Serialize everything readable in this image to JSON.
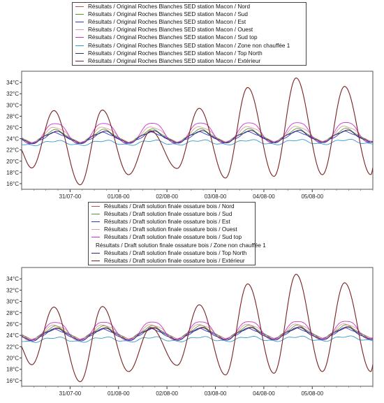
{
  "chart_data": [
    {
      "type": "line",
      "legend_position": "top",
      "grid": false,
      "ylim": [
        15,
        36
      ],
      "yticks": [
        "16°C",
        "18°C",
        "20°C",
        "22°C",
        "24°C",
        "26°C",
        "28°C",
        "30°C",
        "32°C",
        "34°C"
      ],
      "xlim": [
        "2000-07-30T00:00",
        "2000-08-06T06:00"
      ],
      "xticks": [
        "31/07-00",
        "01/08-00",
        "02/08-00",
        "03/08-00",
        "04/08-00",
        "05/08-00"
      ],
      "series": [
        {
          "name": "Résultats / Original Roches Blanches SED station Macon / Nord",
          "color": "#c0504d",
          "mean": 24.3,
          "amp": 0.9
        },
        {
          "name": "Résultats / Original Roches Blanches SED station Macon / Sud",
          "color": "#4f9a3a",
          "mean": 24.4,
          "amp": 1.1
        },
        {
          "name": "Résultats / Original Roches Blanches SED station Macon / Est",
          "color": "#3333cc",
          "mean": 24.1,
          "amp": 0.9
        },
        {
          "name": "Résultats / Original Roches Blanches SED station Macon / Ouest",
          "color": "#e39b9b",
          "mean": 24.6,
          "amp": 1.4
        },
        {
          "name": "Résultats / Original Roches Blanches SED station Macon / Sud top",
          "color": "#cc33cc",
          "mean": 24.9,
          "amp": 1.9
        },
        {
          "name": "Résultats / Original Roches Blanches SED station Macon / Zone non chauffée 1",
          "color": "#3399cc",
          "mean": 23.2,
          "amp": 0.4
        },
        {
          "name": "Résultats / Original Roches Blanches SED station Macon / Top North",
          "color": "#2a2a7a",
          "mean": 24.2,
          "amp": 1.0
        },
        {
          "name": "Résultats / Original Roches Blanches SED station Macon / Extérieur",
          "color": "#7a2020",
          "outdoor": true,
          "mins": [
            18.8,
            15.8,
            17.6,
            18.7,
            17.0,
            17.3,
            17.6,
            17.6
          ],
          "maxs": [
            29.0,
            29.1,
            25.4,
            29.4,
            33.1,
            34.8,
            33.3
          ]
        }
      ]
    },
    {
      "type": "line",
      "legend_position": "top",
      "grid": false,
      "ylim": [
        15,
        36
      ],
      "yticks": [
        "16°C",
        "18°C",
        "20°C",
        "22°C",
        "24°C",
        "26°C",
        "28°C",
        "30°C",
        "32°C",
        "34°C"
      ],
      "xlim": [
        "2000-07-30T00:00",
        "2000-08-06T06:00"
      ],
      "xticks": [
        "31/07-00",
        "01/08-00",
        "02/08-00",
        "03/08-00",
        "04/08-00",
        "05/08-00"
      ],
      "series": [
        {
          "name": "Résultats / Draft solution finale ossature bois / Nord",
          "color": "#c0504d",
          "mean": 24.3,
          "amp": 0.9
        },
        {
          "name": "Résultats / Draft solution finale ossature bois / Sud",
          "color": "#4f9a3a",
          "mean": 24.4,
          "amp": 1.1
        },
        {
          "name": "Résultats / Draft solution finale ossature bois / Est",
          "color": "#3333cc",
          "mean": 24.1,
          "amp": 0.9
        },
        {
          "name": "Résultats / Draft solution finale ossature bois / Ouest",
          "color": "#e39b9b",
          "mean": 24.5,
          "amp": 1.3
        },
        {
          "name": "Résultats / Draft solution finale ossature bois / Sud top",
          "color": "#cc33cc",
          "mean": 24.7,
          "amp": 1.7
        },
        {
          "name": "Résultats / Draft solution finale ossature bois / Zone non chauffée 1",
          "color": "#3399cc",
          "mean": 23.2,
          "amp": 0.4
        },
        {
          "name": "Résultats / Draft solution finale ossature bois / Top North",
          "color": "#2a2a7a",
          "mean": 24.1,
          "amp": 1.0
        },
        {
          "name": "Résultats / Draft solution finale ossature bois / Extérieur",
          "color": "#7a2020",
          "outdoor": true,
          "mins": [
            18.8,
            15.8,
            17.6,
            18.7,
            17.0,
            17.3,
            17.6,
            17.6
          ],
          "maxs": [
            29.0,
            29.1,
            25.4,
            29.4,
            33.1,
            34.8,
            33.3
          ]
        }
      ]
    }
  ]
}
